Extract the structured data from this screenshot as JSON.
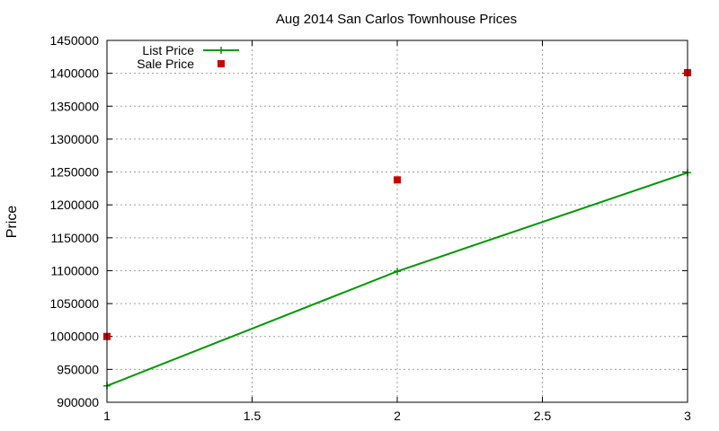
{
  "chart_data": {
    "type": "line",
    "title": "Aug 2014 San Carlos Townhouse Prices",
    "xlabel": "",
    "ylabel": "Price",
    "xlim": [
      1,
      3
    ],
    "ylim": [
      900000,
      1450000
    ],
    "xticks": [
      "1",
      "1.5",
      "2",
      "2.5",
      "3"
    ],
    "xtick_values": [
      1,
      1.5,
      2,
      2.5,
      3
    ],
    "yticks": [
      "900000",
      "950000",
      "1000000",
      "1050000",
      "1100000",
      "1150000",
      "1200000",
      "1250000",
      "1300000",
      "1350000",
      "1400000",
      "1450000"
    ],
    "ytick_values": [
      900000,
      950000,
      1000000,
      1050000,
      1100000,
      1150000,
      1200000,
      1250000,
      1300000,
      1350000,
      1400000,
      1450000
    ],
    "grid": true,
    "legend_position": "top-left",
    "series": [
      {
        "name": "List Price",
        "style": "lines+points",
        "marker": "plus",
        "color": "#009900",
        "x": [
          1,
          2,
          3
        ],
        "y": [
          925000,
          1099000,
          1249000
        ]
      },
      {
        "name": "Sale Price",
        "style": "points",
        "marker": "square",
        "color": "#cc0000",
        "x": [
          1,
          2,
          3
        ],
        "y": [
          1000000,
          1238000,
          1401000
        ]
      }
    ]
  }
}
